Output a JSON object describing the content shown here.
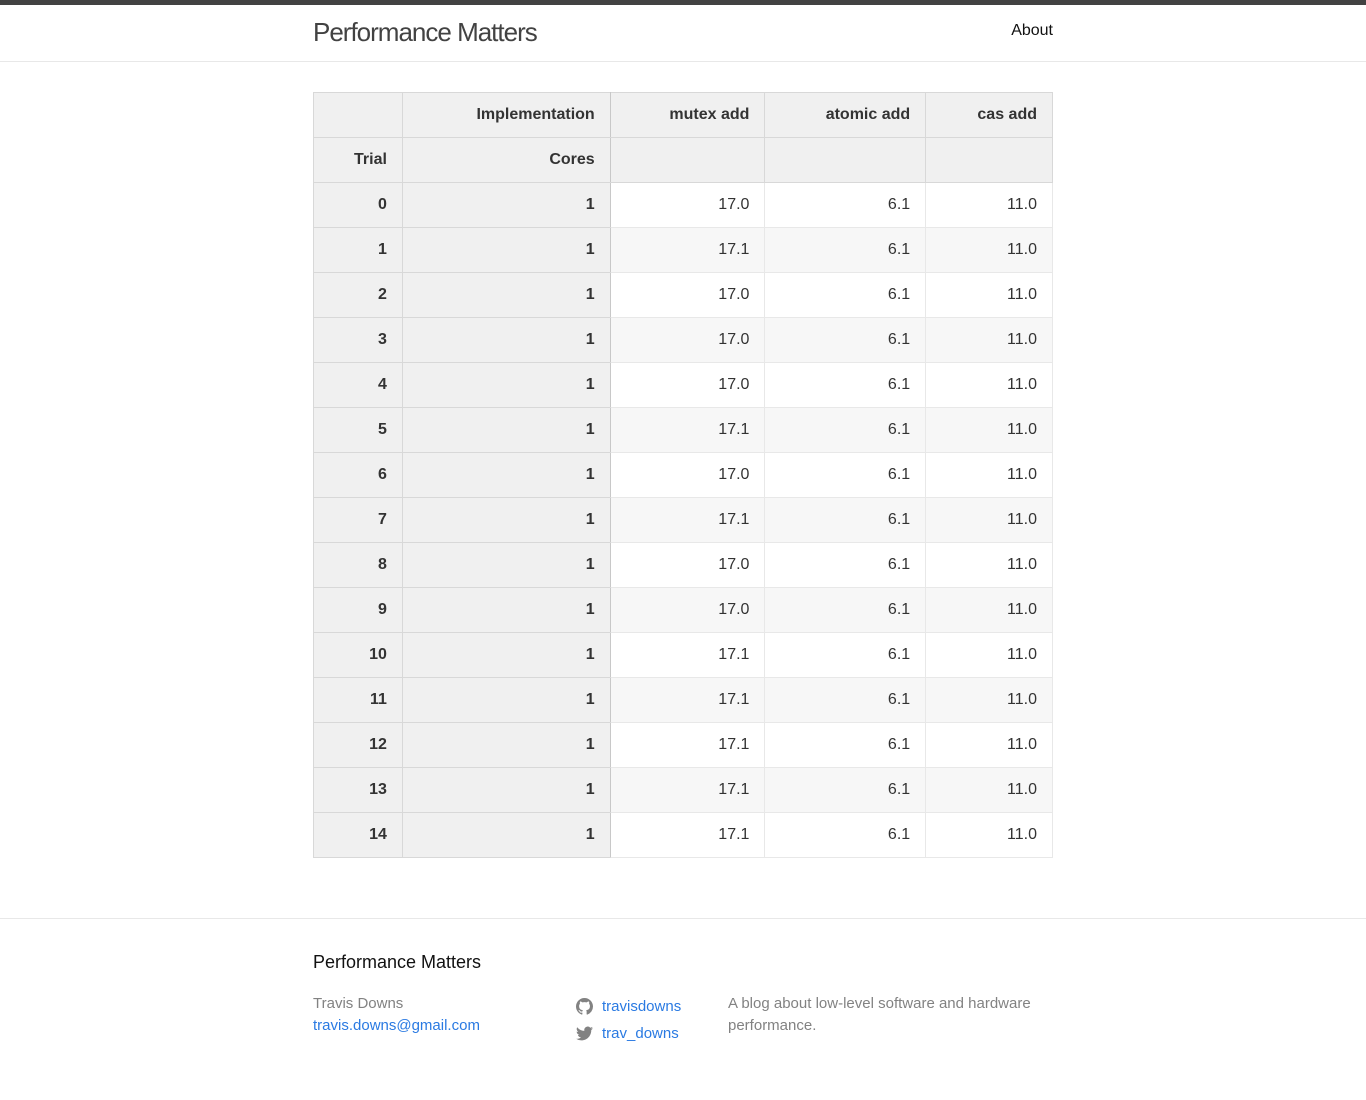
{
  "header": {
    "site_title": "Performance Matters",
    "nav": [
      {
        "label": "About"
      }
    ]
  },
  "table": {
    "column_header_row": {
      "index_label": "Implementation",
      "columns": [
        "mutex add",
        "atomic add",
        "cas add"
      ]
    },
    "index_header_row": {
      "trial_label": "Trial",
      "cores_label": "Cores"
    },
    "rows": [
      {
        "trial": "0",
        "cores": "1",
        "values": [
          "17.0",
          "6.1",
          "11.0"
        ]
      },
      {
        "trial": "1",
        "cores": "1",
        "values": [
          "17.1",
          "6.1",
          "11.0"
        ]
      },
      {
        "trial": "2",
        "cores": "1",
        "values": [
          "17.0",
          "6.1",
          "11.0"
        ]
      },
      {
        "trial": "3",
        "cores": "1",
        "values": [
          "17.0",
          "6.1",
          "11.0"
        ]
      },
      {
        "trial": "4",
        "cores": "1",
        "values": [
          "17.0",
          "6.1",
          "11.0"
        ]
      },
      {
        "trial": "5",
        "cores": "1",
        "values": [
          "17.1",
          "6.1",
          "11.0"
        ]
      },
      {
        "trial": "6",
        "cores": "1",
        "values": [
          "17.0",
          "6.1",
          "11.0"
        ]
      },
      {
        "trial": "7",
        "cores": "1",
        "values": [
          "17.1",
          "6.1",
          "11.0"
        ]
      },
      {
        "trial": "8",
        "cores": "1",
        "values": [
          "17.0",
          "6.1",
          "11.0"
        ]
      },
      {
        "trial": "9",
        "cores": "1",
        "values": [
          "17.0",
          "6.1",
          "11.0"
        ]
      },
      {
        "trial": "10",
        "cores": "1",
        "values": [
          "17.1",
          "6.1",
          "11.0"
        ]
      },
      {
        "trial": "11",
        "cores": "1",
        "values": [
          "17.1",
          "6.1",
          "11.0"
        ]
      },
      {
        "trial": "12",
        "cores": "1",
        "values": [
          "17.1",
          "6.1",
          "11.0"
        ]
      },
      {
        "trial": "13",
        "cores": "1",
        "values": [
          "17.1",
          "6.1",
          "11.0"
        ]
      },
      {
        "trial": "14",
        "cores": "1",
        "values": [
          "17.1",
          "6.1",
          "11.0"
        ]
      }
    ]
  },
  "footer": {
    "heading": "Performance Matters",
    "author_name": "Travis Downs",
    "author_email": "travis.downs@gmail.com",
    "social": [
      {
        "icon": "github-icon",
        "label": "travisdowns"
      },
      {
        "icon": "twitter-icon",
        "label": "trav_downs"
      }
    ],
    "description": "A blog about low-level software and hardware performance."
  },
  "colors": {
    "header_border": "#424242",
    "link": "#2a7ae2",
    "muted_text": "#828282",
    "table_header_bg": "#f0f0f0",
    "table_stripe_bg": "#f7f7f7"
  }
}
